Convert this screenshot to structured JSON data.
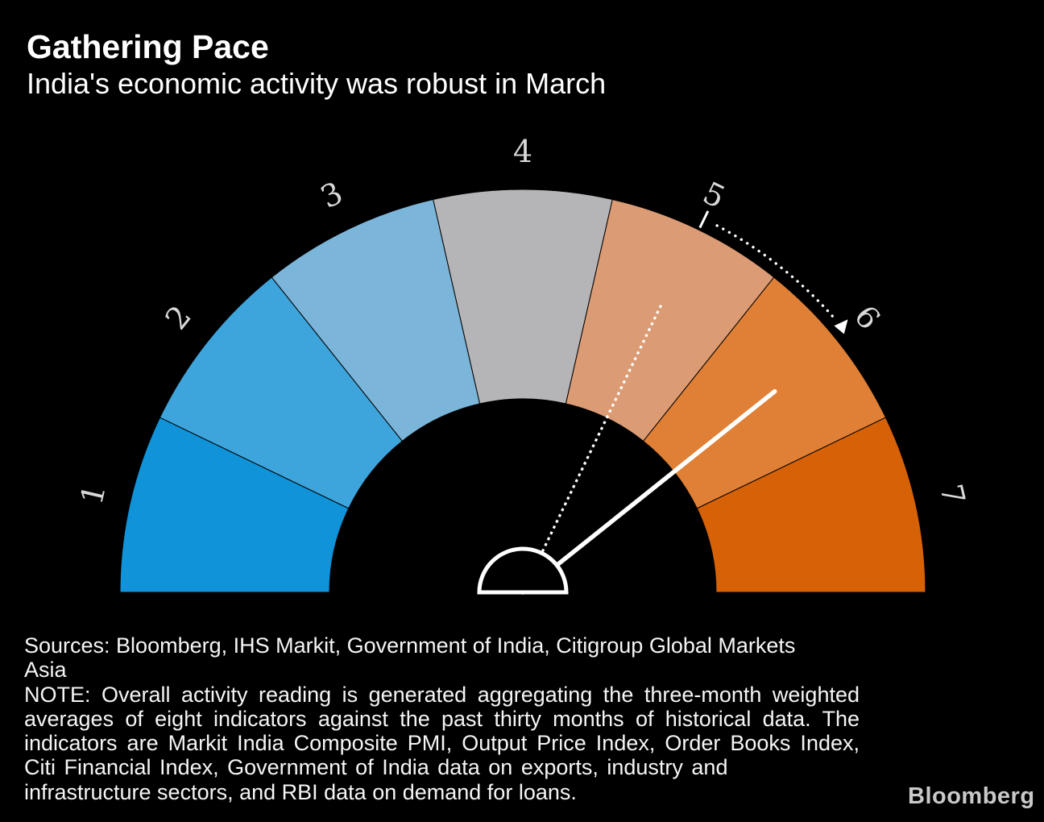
{
  "header": {
    "title": "Gathering Pace",
    "subtitle": "India's economic activity was robust in March"
  },
  "chart_data": {
    "type": "gauge",
    "title": "Gathering Pace",
    "subtitle": "India's economic activity was robust in March",
    "scale": {
      "arc_degrees": 180,
      "segment_labels": [
        "1",
        "2",
        "3",
        "4",
        "5",
        "6",
        "7"
      ]
    },
    "segments": [
      {
        "label": "1",
        "value_range": [
          0,
          1
        ],
        "color": "#1093d8"
      },
      {
        "label": "2",
        "value_range": [
          1,
          2
        ],
        "color": "#3ea4dc"
      },
      {
        "label": "3",
        "value_range": [
          2,
          3
        ],
        "color": "#7cb5da"
      },
      {
        "label": "4",
        "value_range": [
          3,
          4
        ],
        "color": "#b5b4b6"
      },
      {
        "label": "5",
        "value_range": [
          4,
          5
        ],
        "color": "#db9b74"
      },
      {
        "label": "6",
        "value_range": [
          5,
          6
        ],
        "color": "#e08036"
      },
      {
        "label": "7",
        "value_range": [
          6,
          7
        ],
        "color": "#d66106"
      }
    ],
    "needles": {
      "current": {
        "value": 6,
        "style": "solid",
        "color": "#ffffff"
      },
      "previous": {
        "value": 5,
        "style": "dotted",
        "color": "#ffffff"
      }
    },
    "trend_arrow": {
      "from": 5,
      "to": 6,
      "style": "dotted-arc",
      "color": "#ffffff"
    },
    "label_color": "#d9d9d9",
    "background_color": "#000000"
  },
  "footer": {
    "sources_lines": [
      "Sources: Bloomberg, IHS Markit, Government of India, Citigroup Global Markets",
      "Asia"
    ],
    "note_lines": [
      "NOTE: Overall activity reading is generated aggregating the three-month weighted",
      "averages of eight indicators against the past thirty months of historical data. The",
      "indicators are Markit India Composite PMI, Output Price Index, Order Books Index,",
      "Citi Financial Index, Government of India data on exports, industry and",
      "infrastructure sectors, and RBI data on demand for loans."
    ],
    "logo": "Bloomberg"
  }
}
